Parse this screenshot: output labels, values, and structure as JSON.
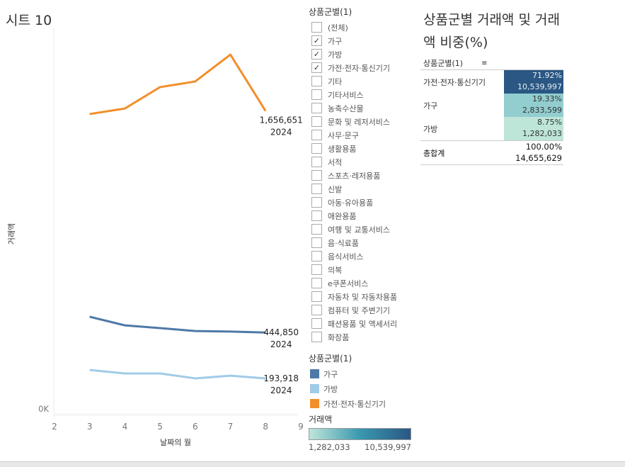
{
  "sheet_title": "시트 10",
  "chart_data": {
    "type": "line",
    "ylabel": "거래액",
    "xlabel": "날짜의 월",
    "x": [
      3,
      4,
      5,
      6,
      7,
      8
    ],
    "xticks": [
      "2",
      "3",
      "4",
      "5",
      "6",
      "7",
      "8",
      "9"
    ],
    "xlim": [
      2,
      9
    ],
    "ylim": [
      0,
      2000000
    ],
    "yticks": [
      "0K",
      "200K",
      "400K",
      "600K",
      "800K",
      "1000K",
      "1200K",
      "1400K",
      "1600K",
      "1800K",
      "2000K"
    ],
    "series": [
      {
        "name": "가전·전자·통신기기",
        "color": "#f28e2b",
        "values": [
          1640000,
          1670000,
          1787000,
          1818000,
          1965000,
          1656651
        ],
        "label": "1,656,651",
        "label_year": "2024"
      },
      {
        "name": "가구",
        "color": "#4e79a7",
        "values": [
          531000,
          484000,
          469000,
          453000,
          450000,
          444850
        ],
        "label": "444,850",
        "label_year": "2024"
      },
      {
        "name": "가방",
        "color": "#a0cbe8",
        "values": [
          240000,
          221000,
          221000,
          194000,
          209000,
          193918
        ],
        "label": "193,918",
        "label_year": "2024"
      }
    ]
  },
  "filter": {
    "title": "상품군별(1)",
    "items": [
      {
        "label": "(전체)",
        "checked": false
      },
      {
        "label": "가구",
        "checked": true
      },
      {
        "label": "가방",
        "checked": true
      },
      {
        "label": "가전·전자·통신기기",
        "checked": true
      },
      {
        "label": "기타",
        "checked": false
      },
      {
        "label": "기타서비스",
        "checked": false
      },
      {
        "label": "농축수산물",
        "checked": false
      },
      {
        "label": "문화 및 레저서비스",
        "checked": false
      },
      {
        "label": "사무·문구",
        "checked": false
      },
      {
        "label": "생활용품",
        "checked": false
      },
      {
        "label": "서적",
        "checked": false
      },
      {
        "label": "스포츠·레저용품",
        "checked": false
      },
      {
        "label": "신발",
        "checked": false
      },
      {
        "label": "아동·유아용품",
        "checked": false
      },
      {
        "label": "애완용품",
        "checked": false
      },
      {
        "label": "여행 및 교통서비스",
        "checked": false
      },
      {
        "label": "음·식료품",
        "checked": false
      },
      {
        "label": "음식서비스",
        "checked": false
      },
      {
        "label": "의복",
        "checked": false
      },
      {
        "label": "e쿠폰서비스",
        "checked": false
      },
      {
        "label": "자동차 및 자동차용품",
        "checked": false
      },
      {
        "label": "컴퓨터 및 주변기기",
        "checked": false
      },
      {
        "label": "패션용품 및 액세서리",
        "checked": false
      },
      {
        "label": "화장품",
        "checked": false
      }
    ]
  },
  "legend": {
    "title": "상품군별(1)",
    "items": [
      {
        "label": "가구",
        "color": "#4e79a7"
      },
      {
        "label": "가방",
        "color": "#a0cbe8"
      },
      {
        "label": "가전·전자·통신기기",
        "color": "#f28e2b"
      }
    ]
  },
  "gradient_legend": {
    "title": "거래액",
    "min": "1,282,033",
    "max": "10,539,997"
  },
  "table": {
    "title": "상품군별 거래액 및 거래액 비중(%)",
    "header": "상품군별(1)",
    "rows": [
      {
        "label": "가전·전자·통신기기",
        "pct": "71.92%",
        "value": "10,539,997",
        "bg": "#2a5783",
        "fg": "#e8eef5"
      },
      {
        "label": "가구",
        "pct": "19.33%",
        "value": "2,833,599",
        "bg": "#92cdcf",
        "fg": "#333"
      },
      {
        "label": "가방",
        "pct": "8.75%",
        "value": "1,282,033",
        "bg": "#bde5d8",
        "fg": "#333"
      }
    ],
    "total": {
      "label": "총합계",
      "pct": "100.00%",
      "value": "14,655,629"
    }
  }
}
